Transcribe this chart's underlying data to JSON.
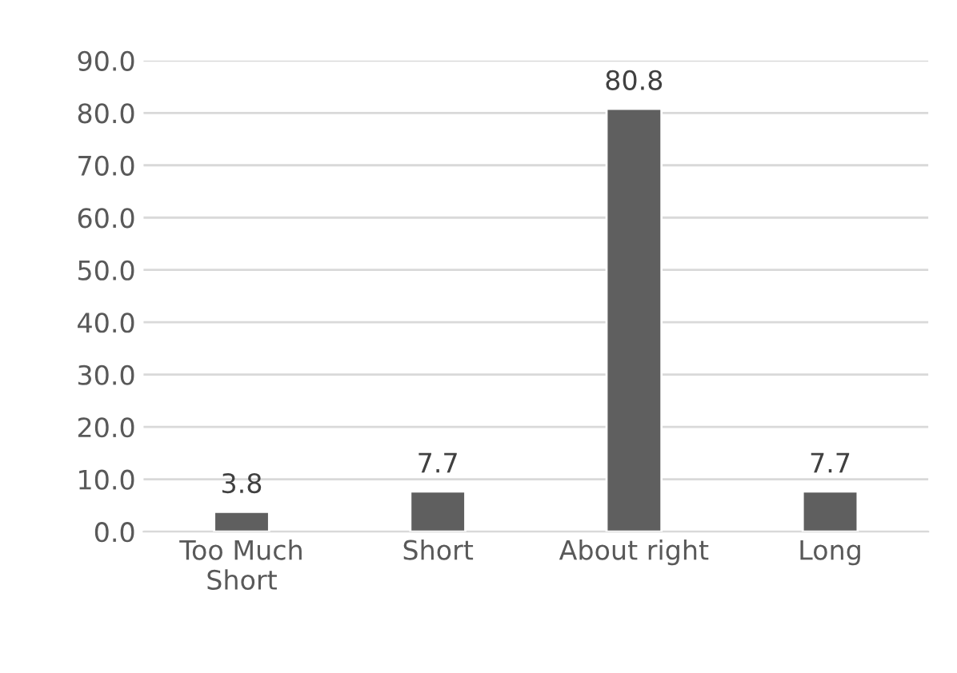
{
  "chart_data": {
    "type": "bar",
    "categories": [
      "Too Much\nShort",
      "Short",
      "About right",
      "Long"
    ],
    "values": [
      3.8,
      7.7,
      80.8,
      7.7
    ],
    "color": "#5f5f5f",
    "ylim": [
      0,
      90
    ],
    "yticks": [
      {
        "value": 0,
        "label": "0.0"
      },
      {
        "value": 10,
        "label": "10.0"
      },
      {
        "value": 20,
        "label": "20.0"
      },
      {
        "value": 30,
        "label": "30.0"
      },
      {
        "value": 40,
        "label": "40.0"
      },
      {
        "value": 50,
        "label": "50.0"
      },
      {
        "value": 60,
        "label": "60.0"
      },
      {
        "value": 70,
        "label": "70.0"
      },
      {
        "value": 80,
        "label": "80.0"
      },
      {
        "value": 90,
        "label": "90.0"
      }
    ],
    "grid": "y",
    "data_labels": true
  }
}
